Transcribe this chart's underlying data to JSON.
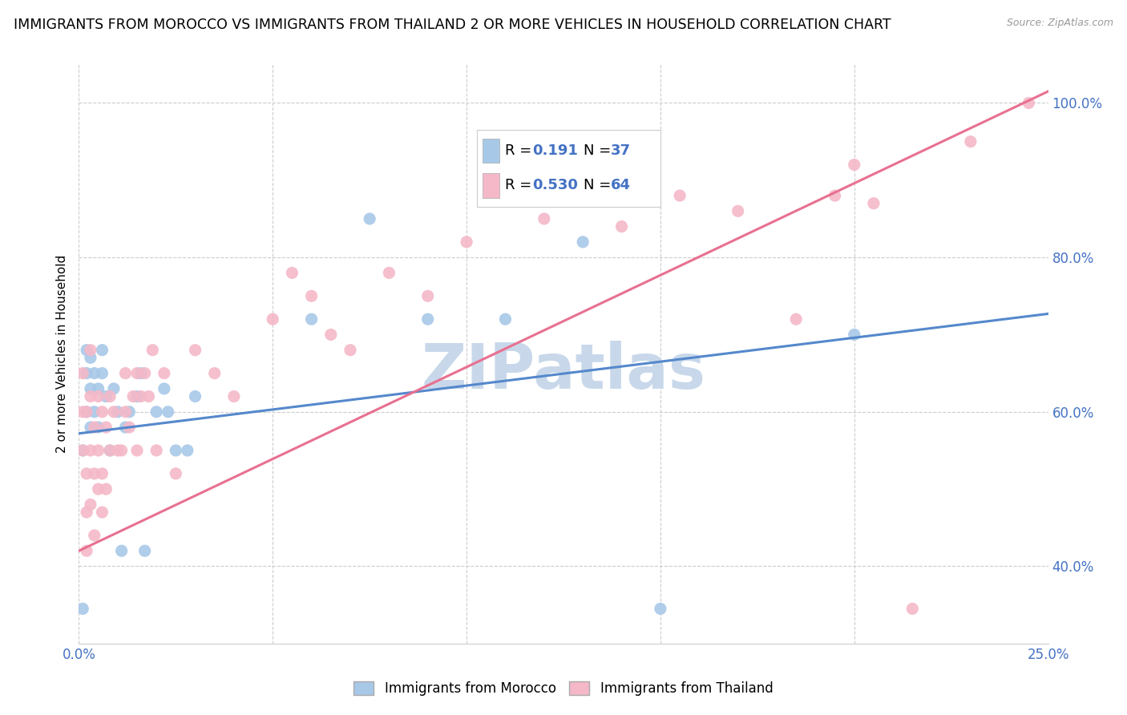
{
  "title": "IMMIGRANTS FROM MOROCCO VS IMMIGRANTS FROM THAILAND 2 OR MORE VEHICLES IN HOUSEHOLD CORRELATION CHART",
  "source": "Source: ZipAtlas.com",
  "ylabel": "2 or more Vehicles in Household",
  "xlim": [
    0.0,
    0.25
  ],
  "ylim": [
    0.3,
    1.05
  ],
  "yticks": [
    0.4,
    0.6,
    0.8,
    1.0
  ],
  "ytick_labels": [
    "40.0%",
    "60.0%",
    "80.0%",
    "100.0%"
  ],
  "xtick_labels": [
    "0.0%",
    "",
    "",
    "",
    "",
    "25.0%"
  ],
  "xticks": [
    0.0,
    0.05,
    0.1,
    0.15,
    0.2,
    0.25
  ],
  "watermark": "ZIPatlas",
  "morocco_color": "#a8c8e8",
  "thailand_color": "#f4b8c8",
  "morocco_line_color": "#5588cc",
  "thailand_line_color": "#e87090",
  "morocco_R": 0.191,
  "morocco_N": 37,
  "thailand_R": 0.53,
  "thailand_N": 64,
  "legend_label_morocco": "Immigrants from Morocco",
  "legend_label_thailand": "Immigrants from Thailand",
  "tick_label_color": "#4472c4",
  "background_color": "#ffffff",
  "grid_color": "#cccccc",
  "watermark_color": "#c8d8ea",
  "morocco_line_intercept": 0.572,
  "morocco_line_slope": 0.62,
  "thailand_line_intercept": 0.42,
  "thailand_line_slope": 2.38,
  "morocco_x": [
    0.001,
    0.001,
    0.002,
    0.002,
    0.002,
    0.003,
    0.003,
    0.003,
    0.004,
    0.004,
    0.005,
    0.005,
    0.006,
    0.006,
    0.007,
    0.008,
    0.009,
    0.01,
    0.011,
    0.012,
    0.013,
    0.015,
    0.016,
    0.017,
    0.02,
    0.022,
    0.023,
    0.025,
    0.028,
    0.03,
    0.06,
    0.075,
    0.09,
    0.11,
    0.13,
    0.15,
    0.2
  ],
  "morocco_y": [
    0.345,
    0.55,
    0.6,
    0.65,
    0.68,
    0.58,
    0.63,
    0.67,
    0.6,
    0.65,
    0.58,
    0.63,
    0.65,
    0.68,
    0.62,
    0.55,
    0.63,
    0.6,
    0.42,
    0.58,
    0.6,
    0.62,
    0.65,
    0.42,
    0.6,
    0.63,
    0.6,
    0.55,
    0.55,
    0.62,
    0.72,
    0.85,
    0.72,
    0.72,
    0.82,
    0.345,
    0.7
  ],
  "thailand_x": [
    0.001,
    0.001,
    0.001,
    0.002,
    0.002,
    0.002,
    0.002,
    0.003,
    0.003,
    0.003,
    0.003,
    0.004,
    0.004,
    0.004,
    0.005,
    0.005,
    0.005,
    0.006,
    0.006,
    0.006,
    0.007,
    0.007,
    0.008,
    0.008,
    0.009,
    0.01,
    0.011,
    0.012,
    0.012,
    0.013,
    0.014,
    0.015,
    0.015,
    0.016,
    0.017,
    0.018,
    0.019,
    0.02,
    0.022,
    0.025,
    0.03,
    0.035,
    0.04,
    0.05,
    0.055,
    0.06,
    0.065,
    0.07,
    0.08,
    0.09,
    0.1,
    0.11,
    0.12,
    0.13,
    0.14,
    0.155,
    0.17,
    0.185,
    0.195,
    0.2,
    0.205,
    0.215,
    0.23,
    0.245
  ],
  "thailand_y": [
    0.55,
    0.6,
    0.65,
    0.42,
    0.47,
    0.52,
    0.6,
    0.48,
    0.55,
    0.62,
    0.68,
    0.44,
    0.52,
    0.58,
    0.5,
    0.55,
    0.62,
    0.47,
    0.52,
    0.6,
    0.5,
    0.58,
    0.55,
    0.62,
    0.6,
    0.55,
    0.55,
    0.6,
    0.65,
    0.58,
    0.62,
    0.55,
    0.65,
    0.62,
    0.65,
    0.62,
    0.68,
    0.55,
    0.65,
    0.52,
    0.68,
    0.65,
    0.62,
    0.72,
    0.78,
    0.75,
    0.7,
    0.68,
    0.78,
    0.75,
    0.82,
    0.88,
    0.85,
    0.88,
    0.84,
    0.88,
    0.86,
    0.72,
    0.88,
    0.92,
    0.87,
    0.345,
    0.95,
    1.0
  ]
}
